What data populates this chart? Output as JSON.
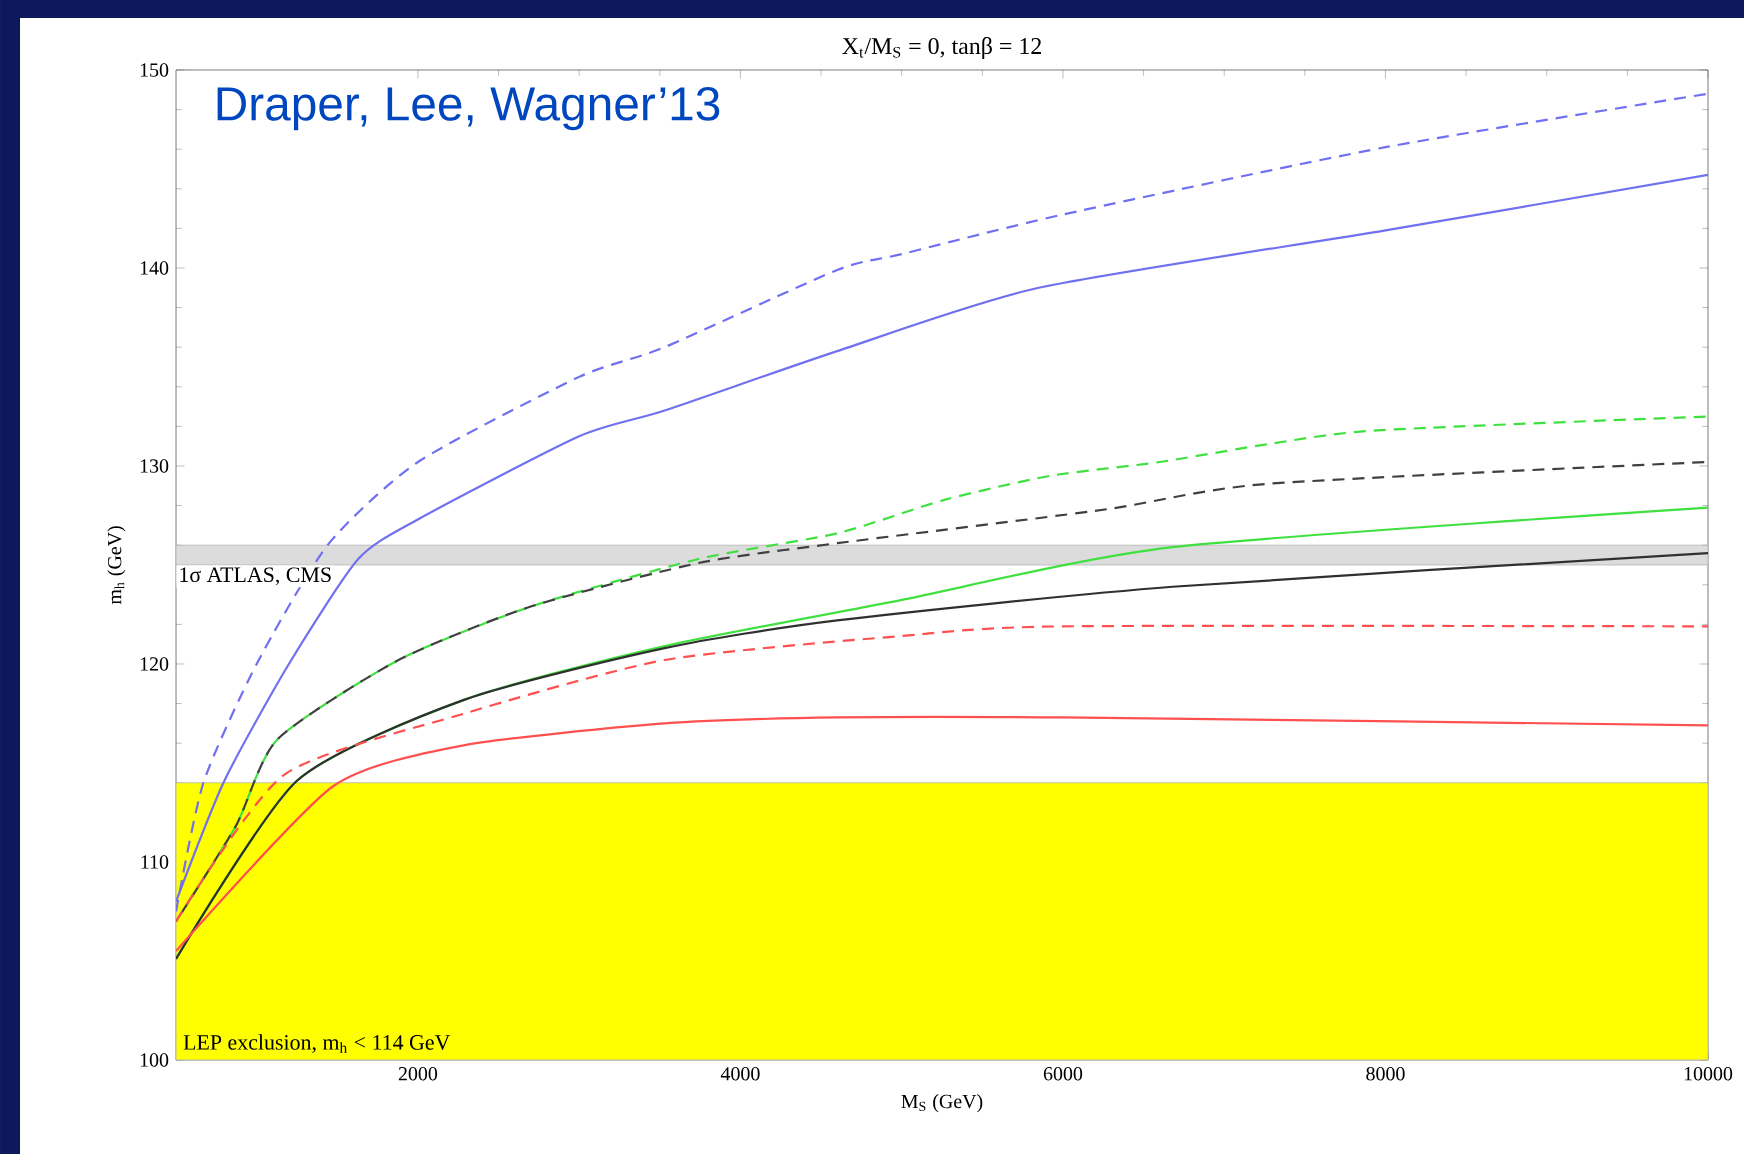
{
  "chart_data": {
    "type": "line",
    "title": "X$_{t}$/M$_{S}$ = 0, tanβ = 12",
    "xlabel": "M$_{S}$ (GeV)",
    "ylabel": "m$_{h}$ (GeV)",
    "annotations": [
      "Draper, Lee, Wagner’13"
    ],
    "xlim": [
      500,
      10000
    ],
    "ylim": [
      100,
      150
    ],
    "xticks": [
      2000,
      4000,
      6000,
      8000,
      10000
    ],
    "yticks": [
      100,
      110,
      120,
      130,
      140,
      150
    ],
    "bands": [
      {
        "axis": "y",
        "from": 100,
        "to": 114,
        "label": "LEP exclusion, m$_{h}$ < 114 GeV",
        "color": "#ffff00"
      },
      {
        "axis": "y",
        "from": 125,
        "to": 126,
        "label": "1σ ATLAS, CMS",
        "color": "#dcdcdc"
      }
    ],
    "series": [
      {
        "color": "#7070f0",
        "line_style": "dashed",
        "x": [
          500,
          670,
          1000,
          1440,
          2000,
          3000,
          3530,
          4600,
          5000,
          6000,
          8000,
          10000
        ],
        "values": [
          107.5,
          114,
          120,
          126,
          130.2,
          134.5,
          136,
          139.9,
          140.7,
          142.7,
          146.1,
          148.8
        ]
      },
      {
        "color": "#7070f0",
        "line_style": "solid",
        "x": [
          500,
          800,
          1200,
          1630,
          2000,
          3000,
          3530,
          4600,
          5850,
          8000,
          10000
        ],
        "values": [
          108,
          114.1,
          120,
          125.3,
          127.3,
          131.5,
          132.8,
          135.8,
          139,
          141.9,
          144.7
        ]
      },
      {
        "color": "#40e040",
        "line_style": "dashed",
        "x": [
          500,
          870,
          1130,
          1880,
          2700,
          3740,
          4600,
          5270,
          5920,
          6600,
          7270,
          7950,
          10000
        ],
        "values": [
          107,
          111.8,
          116.2,
          120.2,
          122.9,
          125.3,
          126.6,
          128.3,
          129.5,
          130.2,
          131.1,
          131.8,
          132.5
        ]
      },
      {
        "color": "#404040",
        "line_style": "dashed",
        "x": [
          500,
          870,
          1130,
          1880,
          2700,
          3740,
          4600,
          6260,
          7270,
          10000
        ],
        "values": [
          107,
          111.8,
          116.2,
          120.2,
          122.9,
          125.1,
          126.1,
          127.8,
          129.1,
          130.2
        ]
      },
      {
        "color": "#40e040",
        "line_style": "solid",
        "x": [
          500,
          1250,
          2290,
          3530,
          4980,
          6680,
          10000
        ],
        "values": [
          105.1,
          114.1,
          118.2,
          120.9,
          123.2,
          125.9,
          127.9
        ]
      },
      {
        "color": "#303030",
        "line_style": "solid",
        "x": [
          500,
          1250,
          2290,
          3530,
          4600,
          6680,
          10000
        ],
        "values": [
          105.1,
          114.1,
          118.2,
          120.8,
          122.2,
          123.9,
          125.6
        ]
      },
      {
        "color": "#ff5050",
        "line_style": "dashed",
        "x": [
          500,
          1170,
          2290,
          3530,
          4980,
          6000,
          10000
        ],
        "values": [
          107,
          114.4,
          117.5,
          120.2,
          121.4,
          121.9,
          121.9
        ]
      },
      {
        "color": "#ff5050",
        "line_style": "solid",
        "x": [
          500,
          1470,
          2290,
          3530,
          4600,
          6000,
          10000
        ],
        "values": [
          105.5,
          113.8,
          115.9,
          117,
          117.3,
          117.3,
          116.9
        ]
      }
    ]
  }
}
